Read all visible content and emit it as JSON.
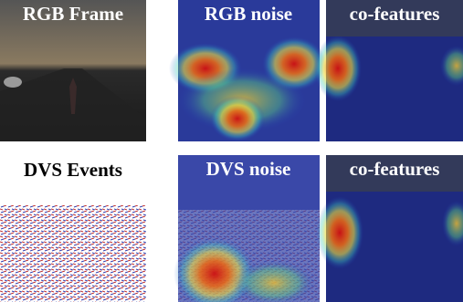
{
  "panels": [
    {
      "label": "RGB Frame"
    },
    {
      "label": "RGB noise"
    },
    {
      "label": "co-features"
    },
    {
      "label": "DVS Events"
    },
    {
      "label": "DVS noise"
    },
    {
      "label": "co-features"
    }
  ]
}
